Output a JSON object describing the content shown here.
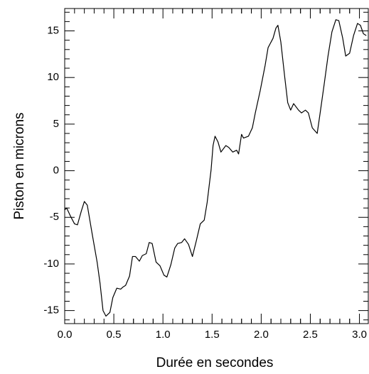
{
  "chart_data": {
    "type": "line",
    "x_label": "Durée en secondes",
    "y_label": "Piston en microns",
    "x": [
      0,
      0.02,
      0.06,
      0.1,
      0.13,
      0.17,
      0.2,
      0.23,
      0.28,
      0.33,
      0.36,
      0.39,
      0.42,
      0.46,
      0.49,
      0.53,
      0.57,
      0.59,
      0.62,
      0.66,
      0.69,
      0.72,
      0.76,
      0.79,
      0.83,
      0.86,
      0.89,
      0.93,
      0.97,
      1.01,
      1.04,
      1.08,
      1.12,
      1.15,
      1.19,
      1.22,
      1.26,
      1.3,
      1.34,
      1.38,
      1.42,
      1.45,
      1.49,
      1.51,
      1.53,
      1.56,
      1.59,
      1.64,
      1.67,
      1.71,
      1.75,
      1.77,
      1.8,
      1.82,
      1.87,
      1.91,
      1.94,
      1.99,
      2.04,
      2.07,
      2.12,
      2.15,
      2.17,
      2.2,
      2.24,
      2.27,
      2.3,
      2.33,
      2.38,
      2.41,
      2.45,
      2.48,
      2.52,
      2.57,
      2.6,
      2.64,
      2.68,
      2.72,
      2.76,
      2.79,
      2.83,
      2.86,
      2.9,
      2.94,
      2.98,
      3.01,
      3.04,
      3.07
    ],
    "series": [
      {
        "color": "#000000",
        "values": [
          -4.2,
          -4.0,
          -4.9,
          -5.7,
          -5.8,
          -4.3,
          -3.3,
          -3.7,
          -6.8,
          -9.8,
          -12.1,
          -15.0,
          -15.6,
          -15.2,
          -13.6,
          -12.6,
          -12.7,
          -12.5,
          -12.3,
          -11.3,
          -9.2,
          -9.2,
          -9.7,
          -9.1,
          -8.9,
          -7.7,
          -7.8,
          -9.8,
          -10.2,
          -11.2,
          -11.4,
          -10.1,
          -8.3,
          -7.8,
          -7.7,
          -7.3,
          -7.9,
          -9.2,
          -7.5,
          -5.7,
          -5.3,
          -3.4,
          0.1,
          2.7,
          3.7,
          3.1,
          2.0,
          2.7,
          2.5,
          2.0,
          2.2,
          1.8,
          3.9,
          3.5,
          3.7,
          4.6,
          6.2,
          8.6,
          11.3,
          13.2,
          14.2,
          15.3,
          15.6,
          13.8,
          10.0,
          7.3,
          6.5,
          7.2,
          6.5,
          6.2,
          6.5,
          6.2,
          4.6,
          4.0,
          6.2,
          9.2,
          12.3,
          14.9,
          16.2,
          16.1,
          14.2,
          12.3,
          12.6,
          14.5,
          15.8,
          15.6,
          14.7,
          14.5
        ]
      }
    ],
    "xlim": [
      0,
      3.09
    ],
    "ylim": [
      -16.4,
      17.4
    ],
    "xticks": [
      {
        "value": 0,
        "label": "0.0"
      },
      0.5,
      {
        "value": 1,
        "label": "1.0"
      },
      1.5,
      {
        "value": 2,
        "label": "2.0"
      },
      2.5,
      {
        "value": 3,
        "label": "3.0"
      }
    ],
    "yticks": [
      -15,
      -10,
      -5,
      0,
      5,
      10,
      15
    ]
  }
}
